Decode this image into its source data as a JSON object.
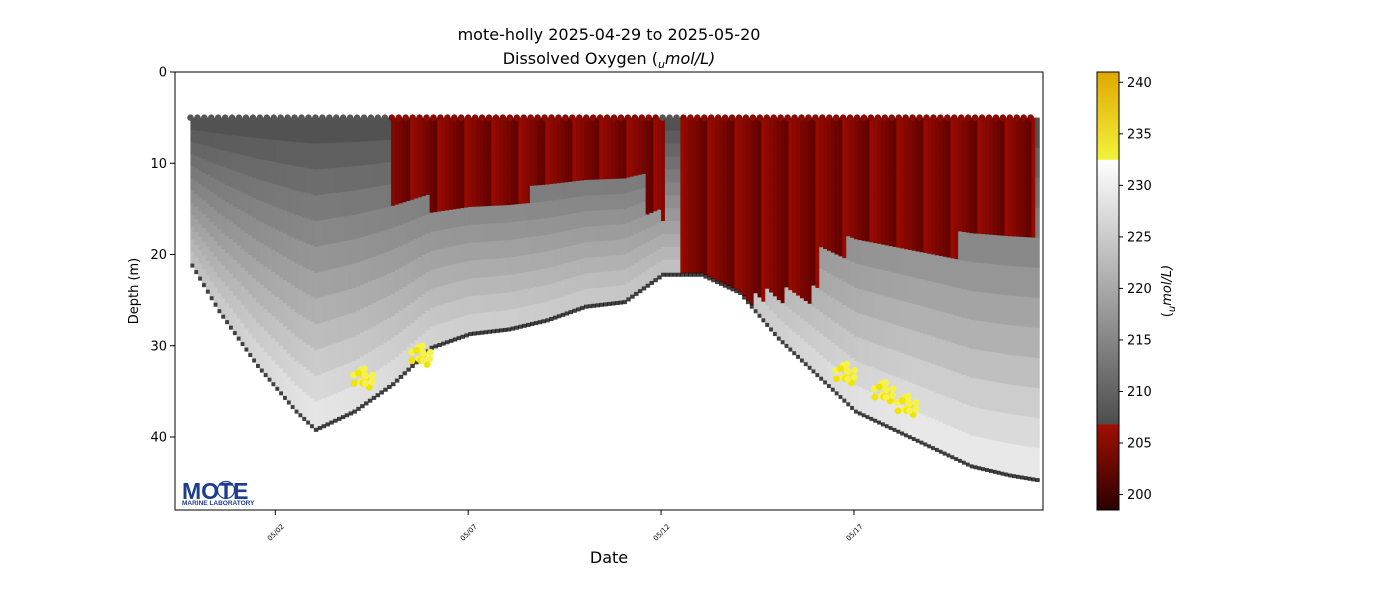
{
  "chart_data": {
    "type": "scatter",
    "title": "mote-holly 2025-04-29 to 2025-05-20",
    "subtitle": "Dissolved Oxygen (",
    "subtitle_sub": "u",
    "subtitle_tail": "mol/L)",
    "xlabel": "Date",
    "ylabel": "Depth (m)",
    "ylim": [
      48,
      0
    ],
    "y_ticks": [
      0,
      10,
      20,
      30,
      40
    ],
    "x_range_days": [
      -2.6,
      19.9
    ],
    "x_ticks": [
      {
        "day": 0,
        "label": "05/02"
      },
      {
        "day": 5,
        "label": "05/07"
      },
      {
        "day": 10,
        "label": "05/12"
      },
      {
        "day": 15,
        "label": "05/17"
      }
    ],
    "series": [
      {
        "description_values": "dissolved oxygen",
        "profiles_depth_max": [
          {
            "day": -2.2,
            "bottom": 21
          },
          {
            "day": -1.5,
            "bottom": 26
          },
          {
            "day": -0.5,
            "bottom": 32
          },
          {
            "day": 0.5,
            "bottom": 37
          },
          {
            "day": 1.0,
            "bottom": 39
          },
          {
            "day": 2.0,
            "bottom": 37
          },
          {
            "day": 3.0,
            "bottom": 34
          },
          {
            "day": 4.0,
            "bottom": 30
          },
          {
            "day": 5.0,
            "bottom": 28.5
          },
          {
            "day": 6.0,
            "bottom": 28
          },
          {
            "day": 7.0,
            "bottom": 27
          },
          {
            "day": 8.0,
            "bottom": 25.5
          },
          {
            "day": 9.0,
            "bottom": 25
          },
          {
            "day": 10.0,
            "bottom": 22
          },
          {
            "day": 11.0,
            "bottom": 22
          },
          {
            "day": 12.0,
            "bottom": 24
          },
          {
            "day": 13.0,
            "bottom": 29
          },
          {
            "day": 14.0,
            "bottom": 33
          },
          {
            "day": 15.0,
            "bottom": 37
          },
          {
            "day": 16.0,
            "bottom": 39
          },
          {
            "day": 17.0,
            "bottom": 41
          },
          {
            "day": 18.0,
            "bottom": 43
          },
          {
            "day": 19.0,
            "bottom": 44
          },
          {
            "day": 19.7,
            "bottom": 44.5
          }
        ],
        "surface_depth": 5,
        "low_oxygen_regions": [
          {
            "day_from": 3.0,
            "day_to": 6.5,
            "depth_to": 15
          },
          {
            "day_from": 6.5,
            "day_to": 9.5,
            "depth_to": 12
          },
          {
            "day_from": 9.5,
            "day_to": 10.0,
            "depth_to": 16
          },
          {
            "day_from": 10.4,
            "day_to": 14.0,
            "depth_to": 25
          },
          {
            "day_from": 14.0,
            "day_to": 19.7,
            "depth_to": 20
          }
        ],
        "high_oxygen_patches": [
          {
            "day": 2.3,
            "depth": 33.5,
            "value": 236
          },
          {
            "day": 3.8,
            "depth": 31,
            "value": 234
          },
          {
            "day": 14.8,
            "depth": 33,
            "value": 235
          },
          {
            "day": 15.8,
            "depth": 35,
            "value": 236
          },
          {
            "day": 16.4,
            "depth": 36.5,
            "value": 235
          }
        ]
      }
    ],
    "colorbar": {
      "label": "(",
      "label_sub": "u",
      "label_tail": "mol/L)",
      "range": [
        198.5,
        241
      ],
      "ticks": [
        200,
        205,
        210,
        215,
        220,
        225,
        230,
        235,
        240
      ],
      "color_stops": [
        {
          "value": 198.5,
          "color": "#2b0000"
        },
        {
          "value": 206.8,
          "color": "#a01000"
        },
        {
          "value": 206.9,
          "color": "#4d4d4d"
        },
        {
          "value": 232.5,
          "color": "#ffffff"
        },
        {
          "value": 232.6,
          "color": "#f3f33a"
        },
        {
          "value": 241,
          "color": "#e0a800"
        }
      ]
    }
  },
  "logo": {
    "text": "MOTE",
    "subtext": "MARINE LABORATORY",
    "color": "#1d3d8f"
  }
}
